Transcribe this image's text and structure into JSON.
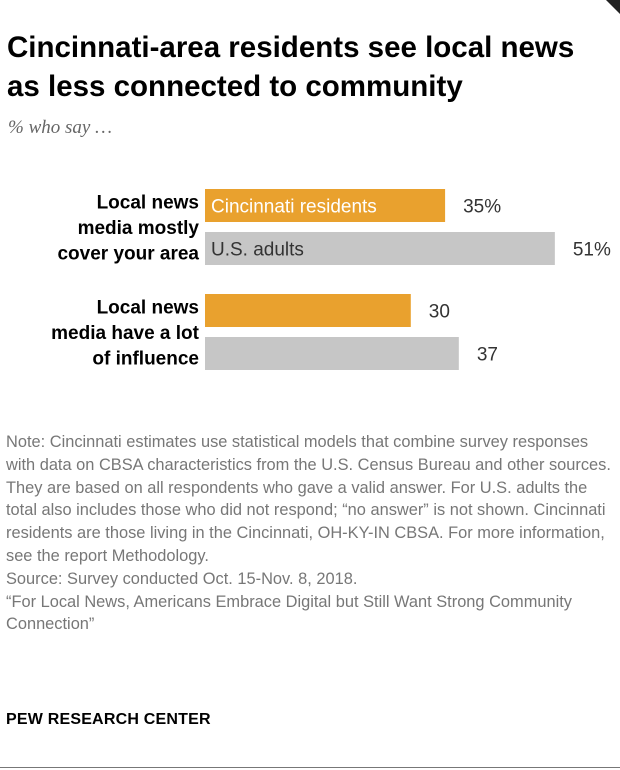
{
  "title": "Cincinnati-area residents see local news as less connected to community",
  "subtitle": "% who say …",
  "chart_data": {
    "type": "bar",
    "orientation": "horizontal",
    "categories": [
      "Local news media mostly cover your area",
      "Local news media have a lot of influence"
    ],
    "series": [
      {
        "name": "Cincinnati residents",
        "values": [
          35,
          30
        ],
        "color": "#E9A12E"
      },
      {
        "name": "U.S. adults",
        "values": [
          51,
          37
        ],
        "color": "#C6C6C6"
      }
    ],
    "value_labels": [
      [
        "35%",
        "51%"
      ],
      [
        "30",
        "37"
      ]
    ],
    "legend": "inside-bars",
    "xlim": [
      0,
      100
    ],
    "grid": false
  },
  "note": "Note: Cincinnati estimates use statistical models that combine survey responses with data on CBSA characteristics from the U.S. Census Bureau and other sources. They are based on all respondents who gave a valid answer. For U.S. adults the total also includes those who did not respond; “no answer” is not shown. Cincinnati residents are those living in the Cincinnati, OH-KY-IN CBSA. For more information, see the report Methodology.",
  "source": "Source: Survey conducted Oct. 15-Nov. 8, 2018.",
  "report": "“For Local News, Americans Embrace Digital but Still Want Strong Community Connection”",
  "organization": "PEW RESEARCH CENTER"
}
